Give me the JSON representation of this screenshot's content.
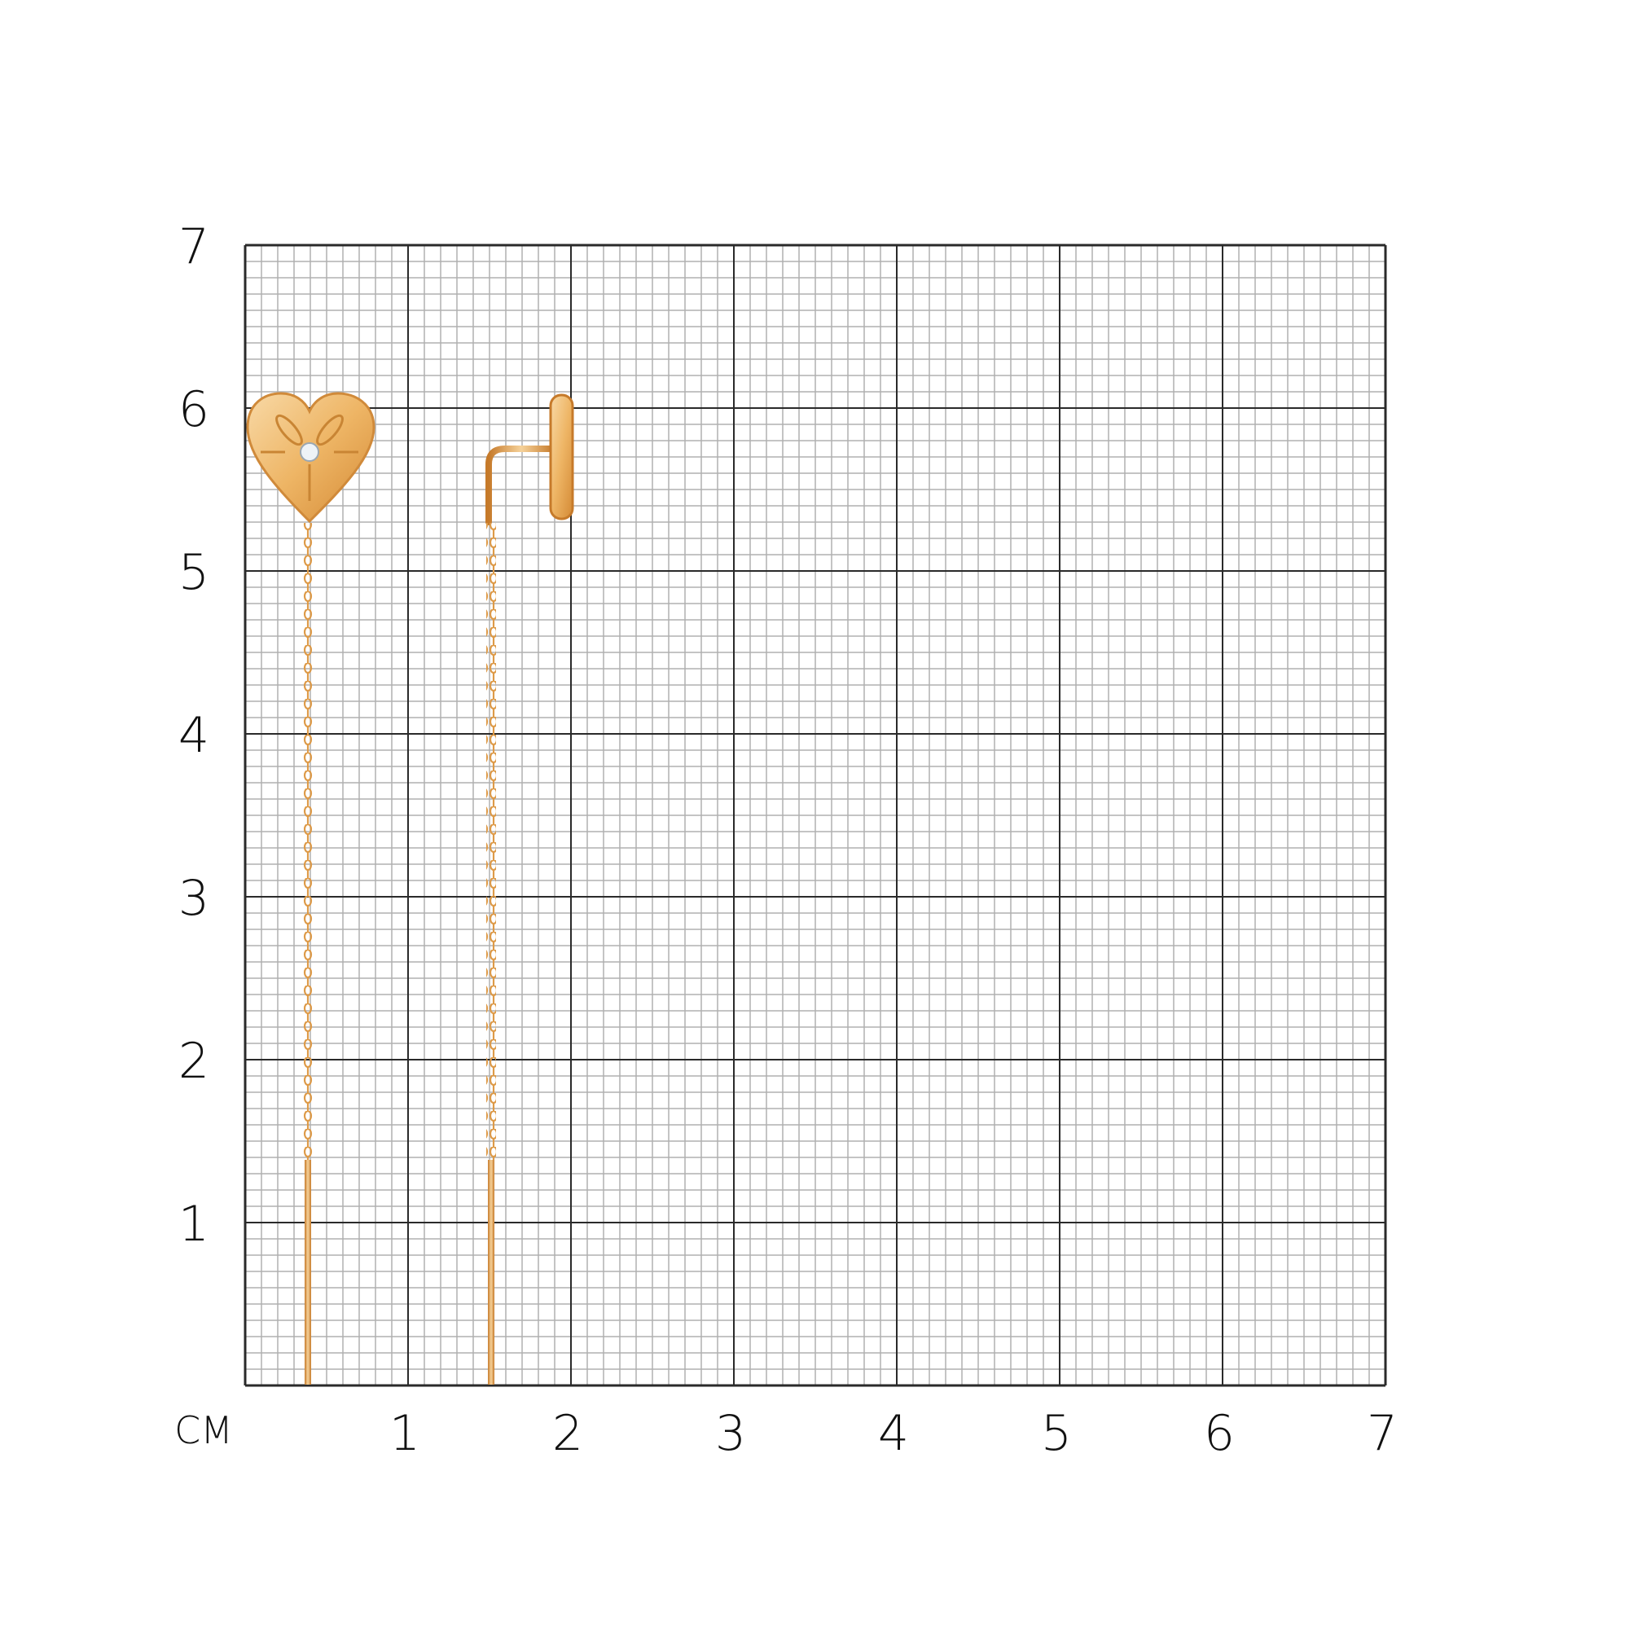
{
  "scale": {
    "unit_label": "СМ",
    "y_labels": [
      "7",
      "6",
      "5",
      "4",
      "3",
      "2",
      "1"
    ],
    "x_labels": [
      "1",
      "2",
      "3",
      "4",
      "5",
      "6",
      "7"
    ],
    "range_cm": [
      0,
      7
    ],
    "minor_divisions_per_cm": 10
  },
  "colors": {
    "major_grid": "#2a2a2a",
    "minor_grid": "#b0b0b0",
    "gold": "#e7a44e",
    "gold_dark": "#c67a2a",
    "gold_light": "#f6d29a",
    "background": "#ffffff"
  },
  "items": [
    {
      "name": "heart-earring-front-view"
    },
    {
      "name": "heart-earring-side-view"
    }
  ]
}
